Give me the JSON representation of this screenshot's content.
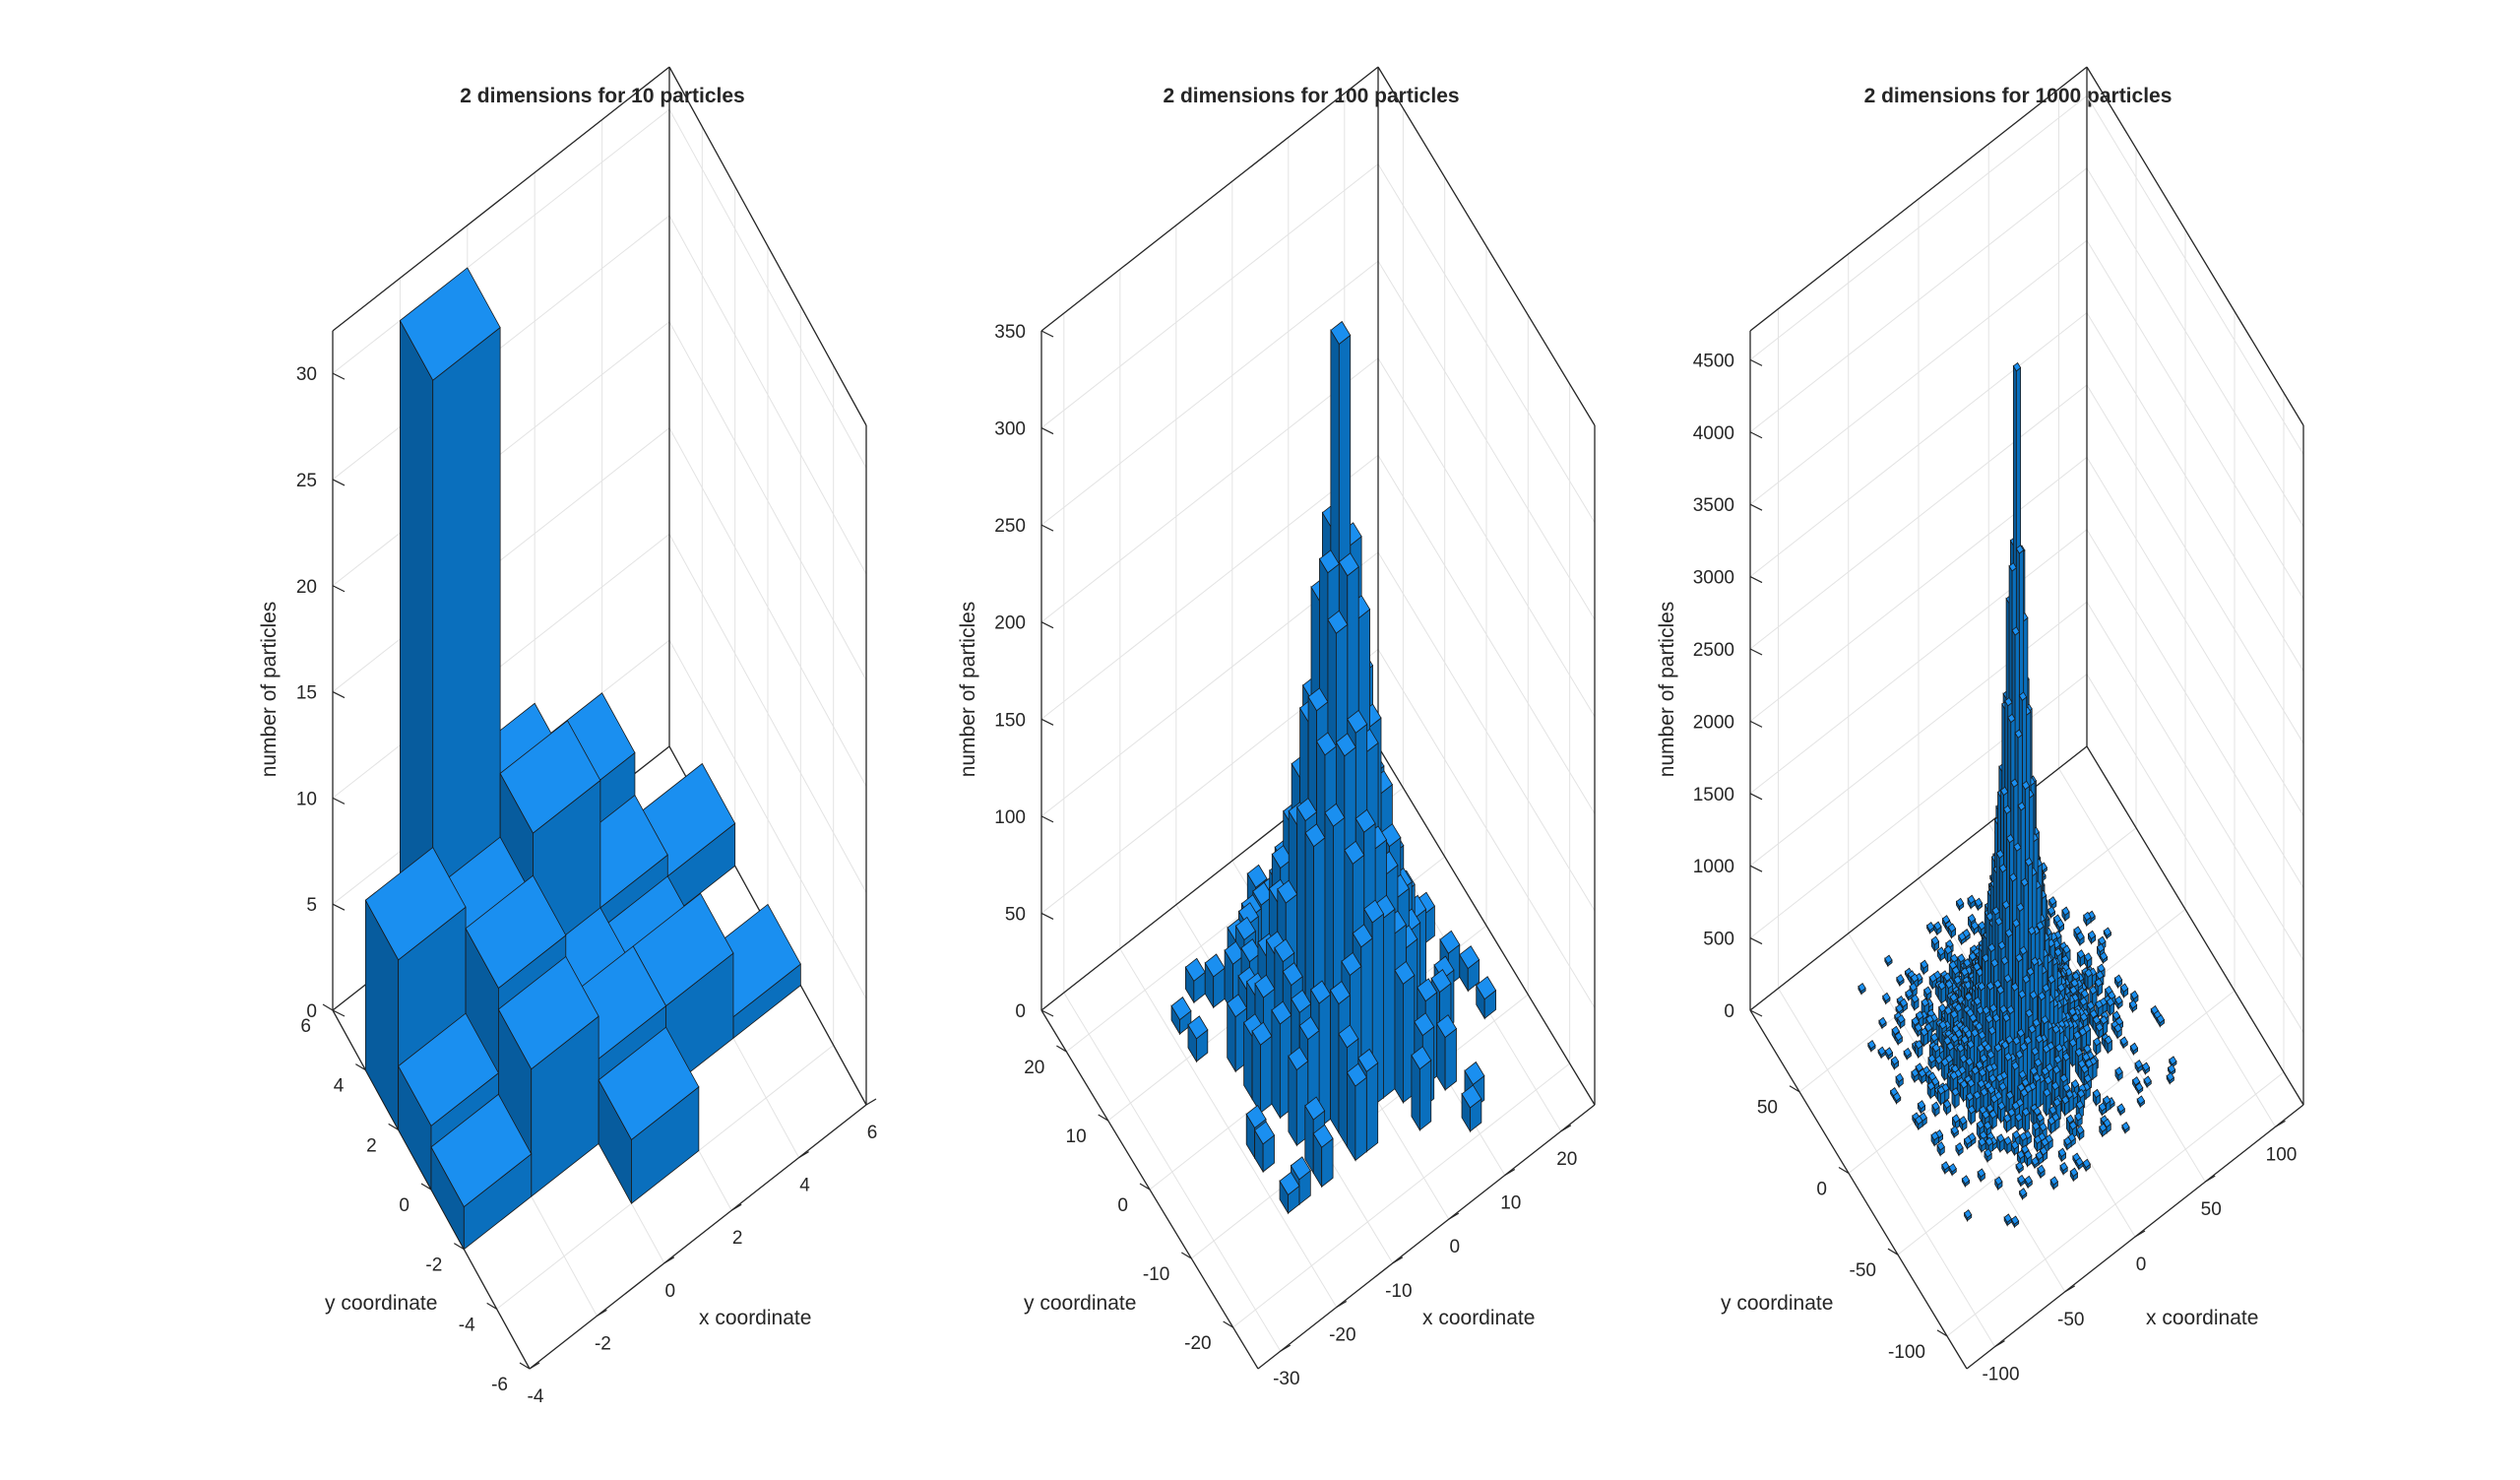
{
  "chart_data": [
    {
      "type": "bar3",
      "title": "2 dimensions for 10 particles",
      "xlabel": "x coordinate",
      "ylabel": "y coordinate",
      "zlabel": "number of particles",
      "xlim": [
        -4,
        6
      ],
      "ylim": [
        -6,
        6
      ],
      "zlim": [
        0,
        32
      ],
      "xticks": [
        -4,
        -2,
        0,
        2,
        4,
        6
      ],
      "yticks": [
        -6,
        -4,
        -2,
        0,
        2,
        4,
        6
      ],
      "zticks": [
        0,
        5,
        10,
        15,
        20,
        25,
        30
      ],
      "bin_width": 2,
      "bars": [
        {
          "x": -1,
          "y": 5,
          "z": 30
        },
        {
          "x": -3,
          "y": 3,
          "z": 8
        },
        {
          "x": -1,
          "y": 3,
          "z": 6
        },
        {
          "x": 1,
          "y": 5,
          "z": 7
        },
        {
          "x": 1,
          "y": 3,
          "z": 9
        },
        {
          "x": 3,
          "y": 5,
          "z": 5
        },
        {
          "x": 3,
          "y": 3,
          "z": 3
        },
        {
          "x": 5,
          "y": 3,
          "z": 2
        },
        {
          "x": -3,
          "y": 1,
          "z": 3
        },
        {
          "x": -1,
          "y": 1,
          "z": 7
        },
        {
          "x": 1,
          "y": 1,
          "z": 3
        },
        {
          "x": 3,
          "y": 1,
          "z": 2
        },
        {
          "x": -3,
          "y": -1,
          "z": 2
        },
        {
          "x": -1,
          "y": -1,
          "z": 6
        },
        {
          "x": 1,
          "y": -1,
          "z": 4
        },
        {
          "x": 3,
          "y": -1,
          "z": 4
        },
        {
          "x": 5,
          "y": -1,
          "z": 1
        },
        {
          "x": 1,
          "y": -3,
          "z": 3
        }
      ]
    },
    {
      "type": "bar3",
      "title": "2 dimensions for 100 particles",
      "xlabel": "x coordinate",
      "ylabel": "y coordinate",
      "zlabel": "number of particles",
      "xlim": [
        -34,
        26
      ],
      "ylim": [
        -26,
        26
      ],
      "zlim": [
        0,
        350
      ],
      "xticks": [
        -30,
        -20,
        -10,
        0,
        10,
        20
      ],
      "yticks": [
        -20,
        -10,
        0,
        10,
        20
      ],
      "zticks": [
        0,
        50,
        100,
        150,
        200,
        250,
        300,
        350
      ],
      "peak": 345,
      "spread": 5.8,
      "extent": 20
    },
    {
      "type": "bar3",
      "title": "2 dimensions for 1000 particles",
      "xlabel": "x coordinate",
      "ylabel": "y coordinate",
      "zlabel": "number of particles",
      "xlim": [
        -120,
        120
      ],
      "ylim": [
        -120,
        100
      ],
      "zlim": [
        0,
        4700
      ],
      "xticks": [
        -100,
        -50,
        0,
        50,
        100
      ],
      "yticks": [
        -100,
        -50,
        0,
        50
      ],
      "zticks": [
        0,
        500,
        1000,
        1500,
        2000,
        2500,
        3000,
        3500,
        4000,
        4500
      ],
      "peak": 4480,
      "spread": 9,
      "extent": 75
    }
  ]
}
